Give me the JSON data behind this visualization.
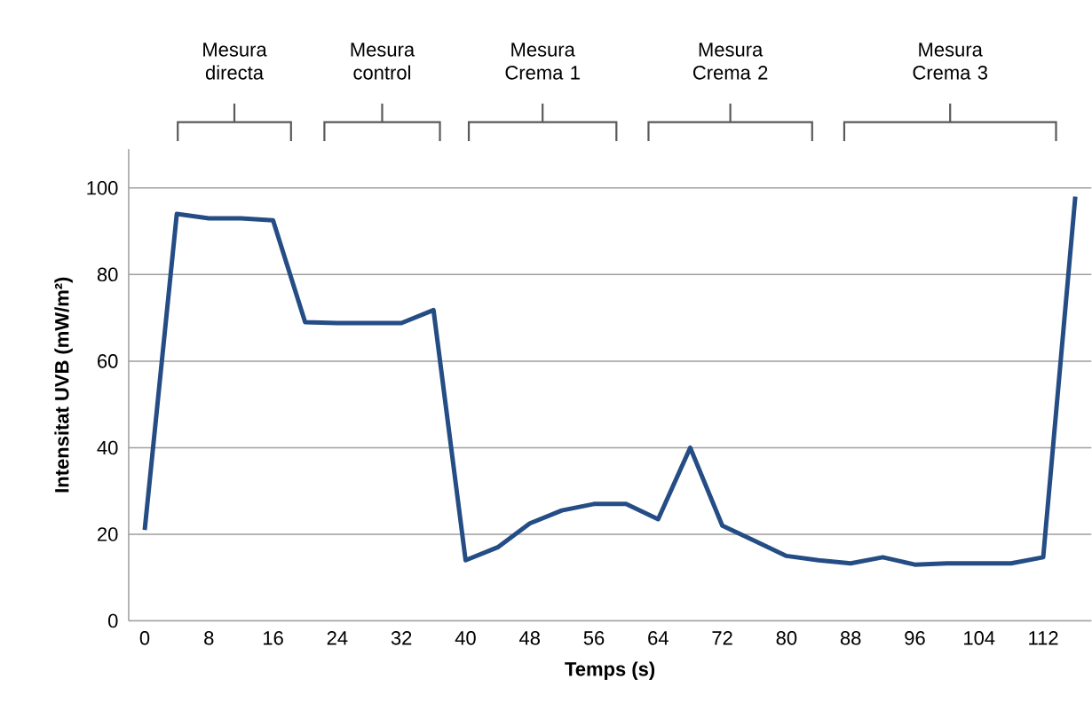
{
  "chart_data": {
    "type": "line",
    "xlabel": "Temps (s)",
    "ylabel": "Intensitat UVB (mW/m²)",
    "categories": [
      "0",
      null,
      "8",
      null,
      "16",
      null,
      "24",
      null,
      "32",
      null,
      "40",
      null,
      "48",
      null,
      "56",
      null,
      "64",
      null,
      "72",
      null,
      "80",
      null,
      "88",
      null,
      "96",
      null,
      "104",
      null,
      "112",
      null
    ],
    "values": [
      21,
      94,
      93,
      93,
      92.5,
      69,
      68.8,
      68.8,
      68.8,
      71.8,
      14,
      17,
      22.5,
      25.5,
      27,
      27,
      23.5,
      40,
      22,
      18.5,
      15,
      14,
      13.3,
      14.7,
      13,
      13.3,
      13.3,
      13.3,
      14.7,
      98
    ],
    "color": "#254d85",
    "ylim": [
      0,
      109
    ],
    "yticks": [
      0,
      20,
      40,
      60,
      80,
      100
    ],
    "grid": "y",
    "marker": "none",
    "line_style": "solid",
    "annotations": [
      "Mesura directa",
      "Mesura control",
      "Mesura Crema 1",
      "Mesura Crema 2",
      "Mesura Crema 3"
    ]
  }
}
